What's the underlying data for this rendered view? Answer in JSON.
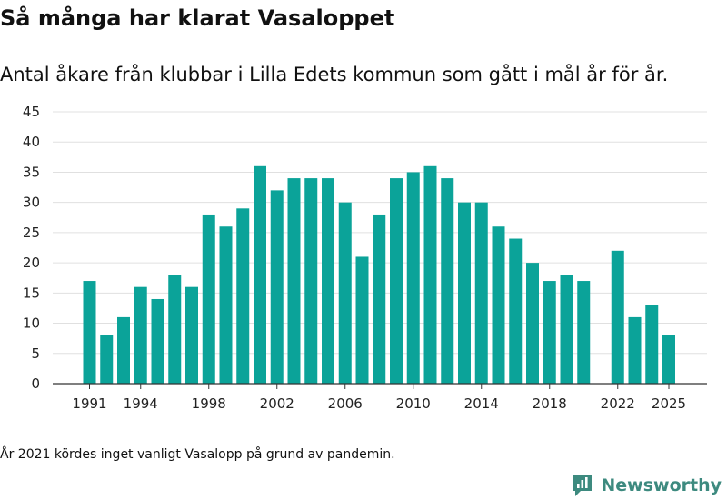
{
  "title": "Så många har klarat Vasaloppet",
  "subtitle": "Antal åkare från klubbar i Lilla Edets kommun som gått i mål år för år.",
  "note": "År 2021 kördes inget vanligt Vasalopp på grund av pandemin.",
  "brand": {
    "name": "Newsworthy",
    "icon": "newsworthy-logo-icon"
  },
  "colors": {
    "bar": "#0ba399",
    "grid": "#e0e0e0",
    "axis": "#333333",
    "brand": "#3d8a7f"
  },
  "chart_data": {
    "type": "bar",
    "title": "Så många har klarat Vasaloppet",
    "xlabel": "",
    "ylabel": "",
    "ylim": [
      0,
      45
    ],
    "yticks": [
      0,
      5,
      10,
      15,
      20,
      25,
      30,
      35,
      40,
      45
    ],
    "xticks": [
      1991,
      1994,
      1998,
      2002,
      2006,
      2010,
      2014,
      2018,
      2022,
      2025
    ],
    "x": [
      1991,
      1992,
      1993,
      1994,
      1995,
      1996,
      1997,
      1998,
      1999,
      2000,
      2001,
      2002,
      2003,
      2004,
      2005,
      2006,
      2007,
      2008,
      2009,
      2010,
      2011,
      2012,
      2013,
      2014,
      2015,
      2016,
      2017,
      2018,
      2019,
      2020,
      2022,
      2023,
      2024,
      2025
    ],
    "values": [
      17,
      8,
      11,
      16,
      14,
      18,
      16,
      28,
      26,
      29,
      36,
      32,
      34,
      34,
      34,
      30,
      21,
      28,
      34,
      35,
      36,
      34,
      30,
      30,
      26,
      24,
      20,
      17,
      18,
      17,
      22,
      11,
      13,
      8
    ],
    "grid": true
  }
}
